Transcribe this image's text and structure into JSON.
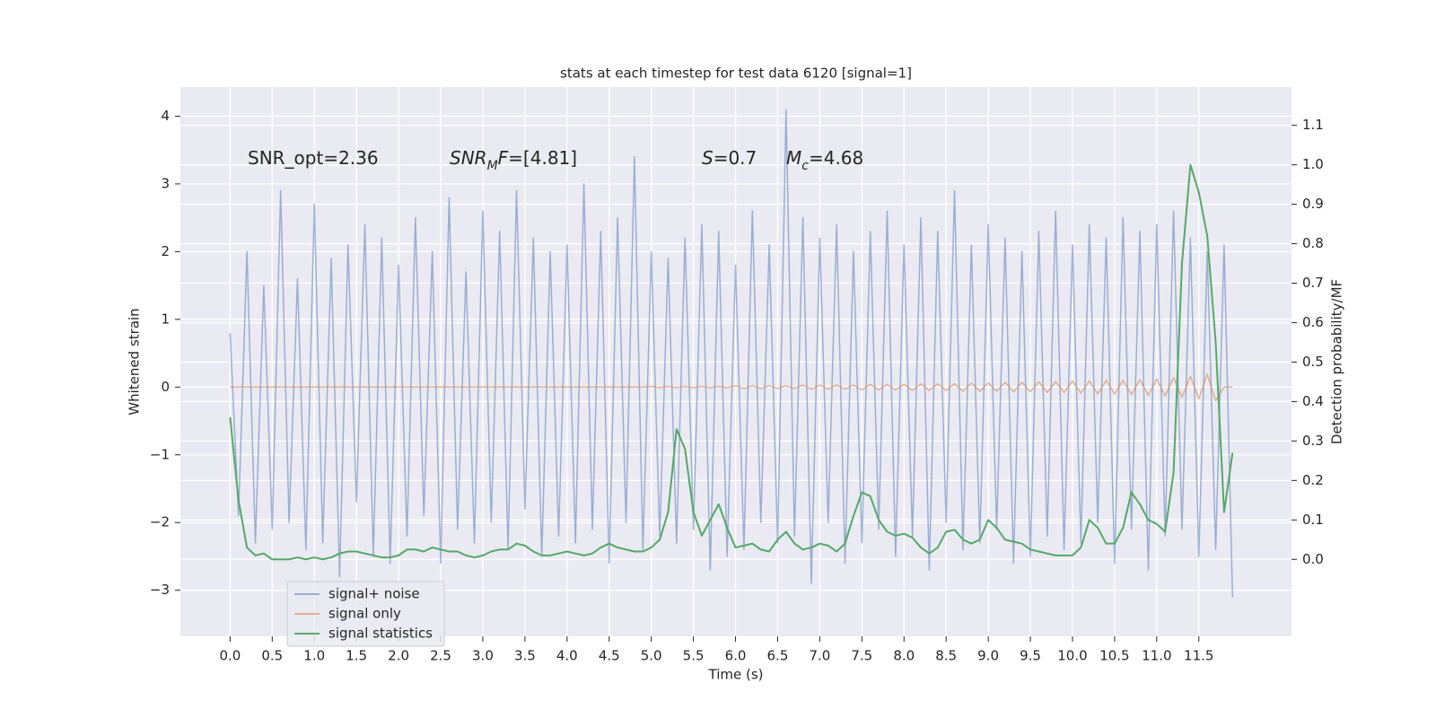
{
  "chart_data": {
    "type": "line",
    "title": "stats at each timestep for test data 6120 [signal=1]",
    "xlabel": "Time (s)",
    "ylabel": "Whitened strain",
    "y2label": "Detection probability/MF",
    "annotations": [
      {
        "parts": [
          {
            "text": "SNR_opt=2.36"
          }
        ]
      },
      {
        "parts": [
          {
            "text": "SNR",
            "style": "italic"
          },
          {
            "text": "M",
            "style": "sub"
          },
          {
            "text": "F",
            "style": "italic"
          },
          {
            "text": "=[4.81]"
          }
        ]
      },
      {
        "parts": [
          {
            "text": "S",
            "style": "italic"
          },
          {
            "text": "=0.7"
          }
        ]
      },
      {
        "parts": [
          {
            "text": "M",
            "style": "italic"
          },
          {
            "text": "c",
            "style": "sub"
          },
          {
            "text": "=4.68"
          }
        ]
      }
    ],
    "xlim": [
      -0.59,
      12.6
    ],
    "xticks": [
      {
        "value": 0,
        "label": "0.0"
      },
      0.5,
      {
        "value": 1,
        "label": "1.0"
      },
      1.5,
      {
        "value": 2,
        "label": "2.0"
      },
      2.5,
      {
        "value": 3,
        "label": "3.0"
      },
      3.5,
      {
        "value": 4,
        "label": "4.0"
      },
      4.5,
      {
        "value": 5,
        "label": "5.0"
      },
      5.5,
      {
        "value": 6,
        "label": "6.0"
      },
      6.5,
      {
        "value": 7,
        "label": "7.0"
      },
      7.5,
      {
        "value": 8,
        "label": "8.0"
      },
      8.5,
      {
        "value": 9,
        "label": "9.0"
      },
      9.5,
      {
        "value": 10,
        "label": "10.0"
      },
      10.5,
      {
        "value": 11,
        "label": "11.0"
      },
      11.5
    ],
    "ylim": [
      -3.68,
      4.43
    ],
    "yticks": [
      {
        "value": -3,
        "label": "−3"
      },
      {
        "value": -2,
        "label": "−2"
      },
      {
        "value": -1,
        "label": "−1"
      },
      0,
      1,
      2,
      3,
      4
    ],
    "y2lim": [
      -0.195,
      1.197
    ],
    "y2ticks": [
      {
        "value": 0,
        "label": "0.0"
      },
      0.1,
      0.2,
      0.3,
      0.4,
      0.5,
      0.6,
      0.7,
      0.8,
      0.9,
      {
        "value": 1,
        "label": "1.0"
      },
      1.1
    ],
    "grid": true,
    "legend": "lower left",
    "x": [
      0,
      0.1,
      0.2,
      0.3,
      0.4,
      0.5,
      0.6,
      0.7,
      0.8,
      0.9,
      1,
      1.1,
      1.2,
      1.3,
      1.4,
      1.5,
      1.6,
      1.7,
      1.8,
      1.9,
      2,
      2.1,
      2.2,
      2.3,
      2.4,
      2.5,
      2.6,
      2.7,
      2.8,
      2.9,
      3,
      3.1,
      3.2,
      3.3,
      3.4,
      3.5,
      3.6,
      3.7,
      3.8,
      3.9,
      4,
      4.1,
      4.2,
      4.3,
      4.4,
      4.5,
      4.6,
      4.7,
      4.8,
      4.9,
      5,
      5.1,
      5.2,
      5.3,
      5.4,
      5.5,
      5.6,
      5.7,
      5.8,
      5.9,
      6,
      6.1,
      6.2,
      6.3,
      6.4,
      6.5,
      6.6,
      6.7,
      6.8,
      6.9,
      7,
      7.1,
      7.2,
      7.3,
      7.4,
      7.5,
      7.6,
      7.7,
      7.8,
      7.9,
      8,
      8.1,
      8.2,
      8.3,
      8.4,
      8.5,
      8.6,
      8.7,
      8.8,
      8.9,
      9,
      9.1,
      9.2,
      9.3,
      9.4,
      9.5,
      9.6,
      9.7,
      9.8,
      9.9,
      10,
      10.1,
      10.2,
      10.3,
      10.4,
      10.5,
      10.6,
      10.7,
      10.8,
      10.9,
      11,
      11.1,
      11.2,
      11.3,
      11.4,
      11.5,
      11.6,
      11.7,
      11.8,
      11.9
    ],
    "series": [
      {
        "name": "signal+ noise",
        "color": "#4c72b0",
        "alpha": 0.5,
        "values": [
          0.8,
          -1.9,
          2.0,
          -2.3,
          1.5,
          -2.1,
          2.9,
          -2.0,
          1.6,
          -2.4,
          2.7,
          -2.3,
          1.9,
          -2.8,
          2.1,
          -1.7,
          2.4,
          -2.5,
          2.2,
          -2.6,
          1.8,
          -2.2,
          2.5,
          -1.9,
          2.0,
          -2.6,
          2.8,
          -2.1,
          1.7,
          -2.3,
          2.6,
          -2.0,
          2.3,
          -2.4,
          2.9,
          -1.8,
          2.2,
          -2.5,
          2.0,
          -2.2,
          2.1,
          -2.3,
          3.0,
          -2.1,
          2.3,
          -2.6,
          2.5,
          -2.0,
          3.4,
          -2.4,
          2.0,
          -2.2,
          1.9,
          -2.3,
          2.2,
          -2.1,
          2.4,
          -2.7,
          2.3,
          -2.5,
          1.8,
          -2.4,
          2.6,
          -2.0,
          2.1,
          -2.3,
          4.1,
          -2.2,
          2.5,
          -2.9,
          2.2,
          -2.0,
          2.4,
          -2.6,
          2.0,
          -2.3,
          2.3,
          -2.1,
          2.6,
          -2.5,
          2.1,
          -2.2,
          2.5,
          -2.7,
          2.3,
          -2.0,
          2.9,
          -2.4,
          2.1,
          -2.3,
          2.4,
          -2.1,
          2.2,
          -2.6,
          2.0,
          -2.5,
          2.3,
          -2.2,
          2.6,
          -2.4,
          2.1,
          -2.3,
          2.4,
          -2.0,
          2.2,
          -2.6,
          2.5,
          -2.1,
          2.3,
          -2.7,
          2.4,
          -2.2,
          2.6,
          -2.1,
          2.2,
          -2.5,
          2.0,
          -2.4,
          2.1,
          -3.1
        ]
      },
      {
        "name": "signal only",
        "color": "#dd8452",
        "alpha": 0.6,
        "values": [
          0,
          0,
          0,
          0,
          0,
          0,
          0,
          0,
          0,
          0,
          0,
          0,
          0,
          0,
          0,
          0,
          0,
          0,
          0,
          0,
          0,
          0,
          0,
          0,
          0,
          0,
          0,
          0,
          0,
          0,
          0,
          0,
          0,
          0,
          0,
          0,
          0,
          0,
          0,
          0,
          0,
          0,
          0,
          0,
          0,
          0,
          0,
          0,
          0,
          0,
          0.01,
          -0.01,
          0.01,
          -0.01,
          0.01,
          -0.01,
          0.01,
          -0.01,
          0.01,
          -0.01,
          0.02,
          -0.02,
          0.02,
          -0.02,
          0.02,
          -0.02,
          0.02,
          -0.02,
          0.03,
          -0.03,
          0.03,
          -0.03,
          0.03,
          -0.03,
          0.03,
          -0.04,
          0.04,
          -0.04,
          0.04,
          -0.04,
          0.04,
          -0.05,
          0.05,
          -0.05,
          0.05,
          -0.05,
          0.05,
          -0.06,
          0.06,
          -0.06,
          0.06,
          -0.06,
          0.07,
          -0.07,
          0.07,
          -0.07,
          0.08,
          -0.08,
          0.08,
          -0.08,
          0.09,
          -0.09,
          0.09,
          -0.1,
          0.1,
          -0.1,
          0.1,
          -0.11,
          0.11,
          -0.12,
          0.12,
          -0.13,
          0.14,
          -0.15,
          0.16,
          -0.17,
          0.19,
          -0.2,
          0,
          0
        ]
      },
      {
        "name": "signal statistics",
        "color": "#55a868",
        "alpha": 1,
        "axis": "y2",
        "values": [
          0.36,
          0.15,
          0.03,
          0.01,
          0.015,
          0.0,
          0.0,
          0.0,
          0.005,
          0.0,
          0.005,
          0.0,
          0.005,
          0.015,
          0.02,
          0.02,
          0.015,
          0.01,
          0.005,
          0.005,
          0.01,
          0.025,
          0.025,
          0.02,
          0.03,
          0.025,
          0.02,
          0.02,
          0.01,
          0.005,
          0.01,
          0.02,
          0.025,
          0.025,
          0.04,
          0.035,
          0.02,
          0.01,
          0.01,
          0.015,
          0.02,
          0.015,
          0.01,
          0.015,
          0.03,
          0.04,
          0.03,
          0.025,
          0.02,
          0.02,
          0.03,
          0.05,
          0.12,
          0.33,
          0.28,
          0.12,
          0.06,
          0.1,
          0.14,
          0.08,
          0.03,
          0.035,
          0.04,
          0.025,
          0.02,
          0.05,
          0.07,
          0.04,
          0.025,
          0.03,
          0.04,
          0.035,
          0.02,
          0.04,
          0.11,
          0.17,
          0.16,
          0.1,
          0.07,
          0.06,
          0.065,
          0.055,
          0.03,
          0.015,
          0.03,
          0.07,
          0.075,
          0.05,
          0.04,
          0.05,
          0.1,
          0.08,
          0.05,
          0.045,
          0.04,
          0.025,
          0.02,
          0.015,
          0.01,
          0.01,
          0.01,
          0.03,
          0.1,
          0.08,
          0.04,
          0.04,
          0.08,
          0.17,
          0.14,
          0.1,
          0.09,
          0.07,
          0.22,
          0.75,
          1.0,
          0.93,
          0.82,
          0.55,
          0.12,
          0.27
        ]
      }
    ]
  }
}
